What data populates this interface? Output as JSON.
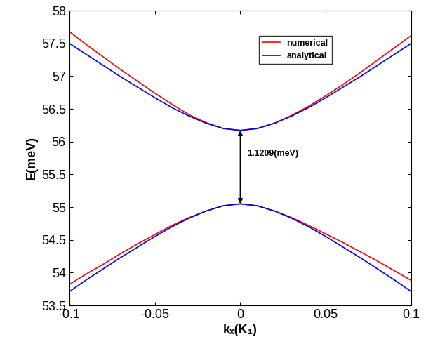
{
  "chart_data": {
    "type": "line",
    "x_label": "kₓ(K₁)",
    "y_label": "E(meV)",
    "x": [
      -0.1,
      -0.09,
      -0.08,
      -0.07,
      -0.06,
      -0.05,
      -0.04,
      -0.03,
      -0.02,
      -0.01,
      0,
      0.01,
      0.02,
      0.03,
      0.04,
      0.05,
      0.06,
      0.07,
      0.08,
      0.09,
      0.1
    ],
    "series": [
      {
        "name": "numerical",
        "color": "#ff0000",
        "upper": [
          57.68,
          57.48,
          57.29,
          57.1,
          56.92,
          56.74,
          56.57,
          56.41,
          56.29,
          56.2,
          56.17,
          56.2,
          56.28,
          56.4,
          56.54,
          56.7,
          56.87,
          57.05,
          57.24,
          57.43,
          57.62
        ],
        "lower": [
          53.82,
          53.98,
          54.13,
          54.29,
          54.44,
          54.58,
          54.72,
          54.84,
          54.94,
          55.02,
          55.05,
          55.02,
          54.94,
          54.84,
          54.72,
          54.59,
          54.46,
          54.32,
          54.18,
          54.03,
          53.88
        ]
      },
      {
        "name": "analytical",
        "color": "#0000ff",
        "upper": [
          57.5,
          57.33,
          57.16,
          56.99,
          56.83,
          56.67,
          56.52,
          56.39,
          56.28,
          56.2,
          56.17,
          56.2,
          56.28,
          56.39,
          56.52,
          56.67,
          56.83,
          56.99,
          57.16,
          57.33,
          57.5
        ],
        "lower": [
          53.71,
          53.89,
          54.06,
          54.23,
          54.39,
          54.55,
          54.7,
          54.83,
          54.94,
          55.02,
          55.05,
          55.02,
          54.94,
          54.83,
          54.7,
          54.55,
          54.39,
          54.23,
          54.06,
          53.89,
          53.71
        ]
      }
    ],
    "annotations": [
      {
        "text": "1.1209(meV)",
        "x": 0,
        "y_from": 55.05,
        "y_to": 56.17
      }
    ],
    "xlim": [
      -0.1,
      0.1
    ],
    "xticks": [
      -0.1,
      -0.05,
      0,
      0.05,
      0.1
    ],
    "ylim": [
      53.5,
      58
    ],
    "yticks": [
      53.5,
      54,
      54.5,
      55,
      55.5,
      56,
      56.5,
      57,
      57.5,
      58
    ],
    "grid": false,
    "legend": "upper right"
  }
}
